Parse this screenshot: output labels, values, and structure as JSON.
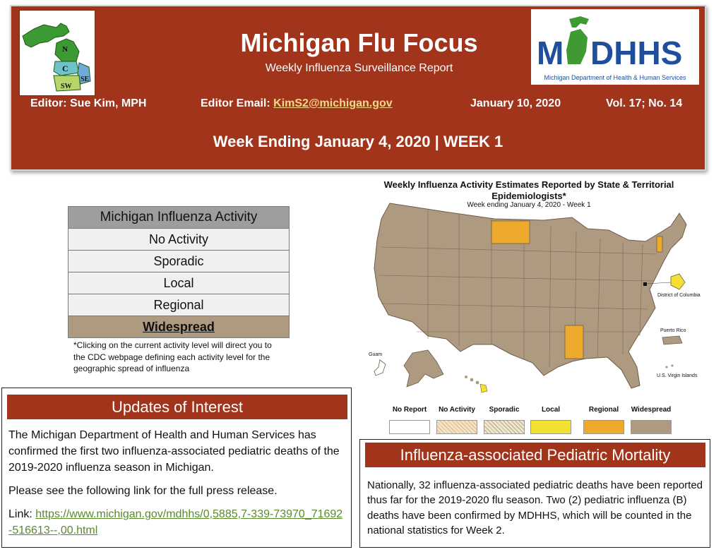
{
  "header": {
    "title": "Michigan Flu Focus",
    "subtitle": "Weekly Influenza Surveillance Report",
    "editor": "Editor: Sue Kim, MPH",
    "email_label": "Editor Email:",
    "email": "KimS2@michigan.gov",
    "date": "January 10, 2020",
    "volume": "Vol. 17; No. 14",
    "week_line": "Week Ending January 4, 2020 | WEEK 1",
    "mi_logo": {
      "region_labels": [
        "N",
        "C",
        "SE",
        "SW"
      ]
    },
    "mdhhs_logo": {
      "wordmark": "MDHHS",
      "tagline": "Michigan Department of Health & Human Services",
      "blue": "#1f4e9c",
      "green": "#3f9a33"
    },
    "color": "#a1341a"
  },
  "activity": {
    "heading": "Michigan Influenza Activity",
    "levels": [
      "No Activity",
      "Sporadic",
      "Local",
      "Regional",
      "Widespread"
    ],
    "current": "Widespread",
    "note": "*Clicking on the current activity level will direct you to the CDC webpage defining each activity level for the geographic spread of influenza"
  },
  "map": {
    "title": "Weekly Influenza Activity Estimates Reported by State & Territorial Epidemiologists*",
    "subtitle": "Week ending January 4, 2020 - Week 1",
    "territory_labels": {
      "dc": "District of Columbia",
      "pr": "Puerto Rico",
      "vi": "U.S. Virgin Islands",
      "guam": "Guam"
    },
    "legend": [
      {
        "label": "No Report",
        "color": "#ffffff"
      },
      {
        "label": "No Activity",
        "color": "#f4e3c8"
      },
      {
        "label": "Sporadic",
        "color": "#efe6cf"
      },
      {
        "label": "Local",
        "color": "#f2e131"
      },
      {
        "label": "Regional",
        "color": "#eeaa2c"
      },
      {
        "label": "Widespread",
        "color": "#ae9a80"
      }
    ]
  },
  "updates": {
    "heading": "Updates of Interest",
    "paragraph1": "The Michigan Department of Health and Human Services has confirmed the first two influenza-associated pediatric deaths of the 2019-2020 influenza season in Michigan.",
    "paragraph2": "Please see the following link for the full press release.",
    "link_label": "Link:",
    "link": "https://www.michigan.gov/mdhhs/0,5885,7-339-73970_71692-516613--,00.html"
  },
  "mortality": {
    "heading": "Influenza-associated Pediatric Mortality",
    "body": "Nationally, 32 influenza-associated pediatric deaths have been reported thus far for the 2019-2020 flu season. Two (2) pediatric influenza (B) deaths have been confirmed by MDHHS, which will be counted in the national statistics for Week 2."
  }
}
